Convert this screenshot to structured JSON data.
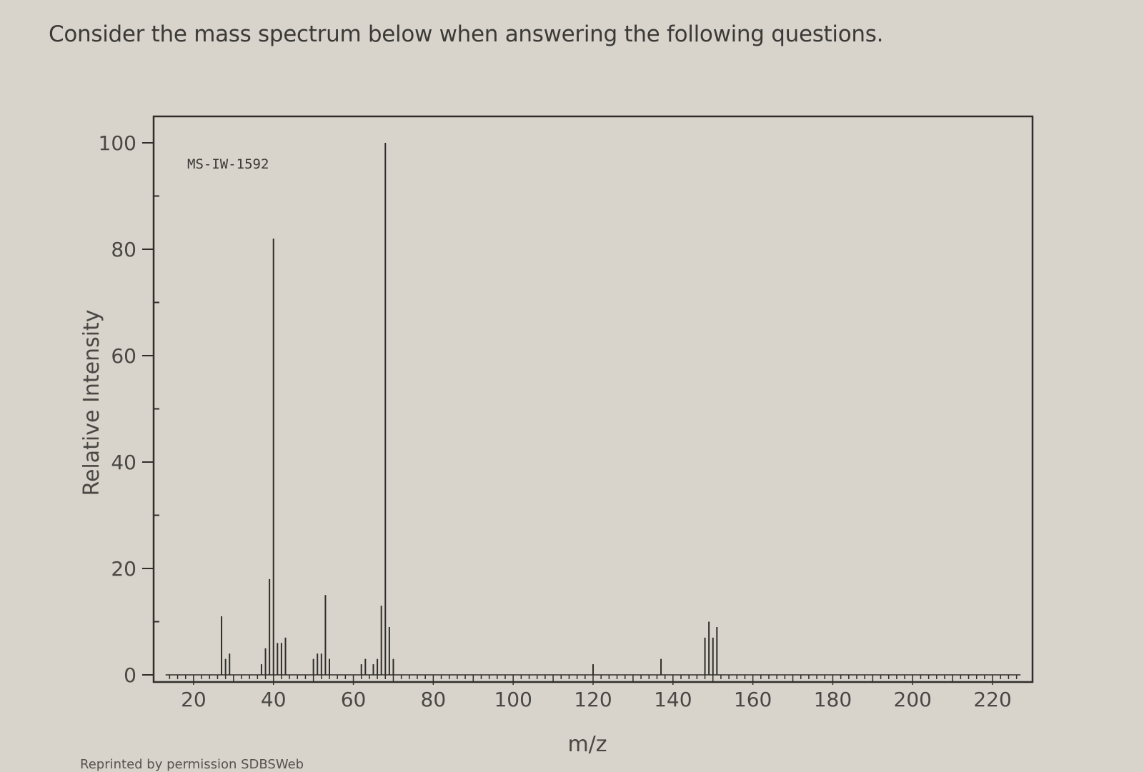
{
  "question": "Consider the mass spectrum below when answering the following questions.",
  "credit": "Reprinted by permission SDBSWeb",
  "chart_data": {
    "type": "bar",
    "title": "MS-IW-1592",
    "xlabel": "m/z",
    "ylabel": "Relative Intensity",
    "xlim": [
      10,
      230
    ],
    "ylim": [
      0,
      100
    ],
    "x_ticks": [
      20,
      40,
      60,
      80,
      100,
      120,
      140,
      160,
      180,
      200,
      220
    ],
    "y_ticks": [
      0,
      20,
      40,
      60,
      80,
      100
    ],
    "grid": false,
    "legend": "none",
    "peaks": [
      {
        "mz": 27,
        "intensity": 11
      },
      {
        "mz": 28,
        "intensity": 3
      },
      {
        "mz": 29,
        "intensity": 4
      },
      {
        "mz": 37,
        "intensity": 2
      },
      {
        "mz": 38,
        "intensity": 5
      },
      {
        "mz": 39,
        "intensity": 18
      },
      {
        "mz": 40,
        "intensity": 82
      },
      {
        "mz": 41,
        "intensity": 6
      },
      {
        "mz": 42,
        "intensity": 6
      },
      {
        "mz": 43,
        "intensity": 7
      },
      {
        "mz": 50,
        "intensity": 3
      },
      {
        "mz": 51,
        "intensity": 4
      },
      {
        "mz": 52,
        "intensity": 4
      },
      {
        "mz": 53,
        "intensity": 15
      },
      {
        "mz": 54,
        "intensity": 3
      },
      {
        "mz": 62,
        "intensity": 2
      },
      {
        "mz": 63,
        "intensity": 3
      },
      {
        "mz": 65,
        "intensity": 2
      },
      {
        "mz": 66,
        "intensity": 3
      },
      {
        "mz": 67,
        "intensity": 13
      },
      {
        "mz": 68,
        "intensity": 100
      },
      {
        "mz": 69,
        "intensity": 9
      },
      {
        "mz": 70,
        "intensity": 3
      },
      {
        "mz": 120,
        "intensity": 2
      },
      {
        "mz": 137,
        "intensity": 3
      },
      {
        "mz": 148,
        "intensity": 7
      },
      {
        "mz": 149,
        "intensity": 10
      },
      {
        "mz": 150,
        "intensity": 7
      },
      {
        "mz": 151,
        "intensity": 9
      }
    ],
    "colors": {
      "background": "#d8d4cb",
      "line": "#2f2e2b",
      "text": "#4a4844"
    }
  }
}
